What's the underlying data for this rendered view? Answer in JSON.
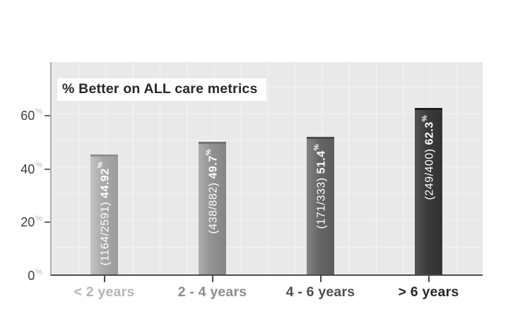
{
  "chart_data": {
    "type": "bar",
    "title": "% Better on ALL care metrics",
    "xlabel": "",
    "ylabel": "",
    "categories": [
      "< 2 years",
      "2 - 4 years",
      "4 - 6 years",
      "> 6 years"
    ],
    "values": [
      44.92,
      49.7,
      51.4,
      62.3
    ],
    "percent_sign": "%",
    "grid": true,
    "legend_position": "none",
    "plot_background": "#e9e9e9",
    "y_axis": {
      "max": 80,
      "unit": "%",
      "ticks": [
        {
          "label": "0",
          "value": 0
        },
        {
          "label": "20",
          "value": 20
        },
        {
          "label": "40",
          "value": 40
        },
        {
          "label": "60",
          "value": 60
        }
      ]
    },
    "bars": [
      {
        "category": "< 2 years",
        "fraction": "(1164/2591) ",
        "value": 44.92,
        "value_label": "44.92",
        "color_light": "#c4c4c4",
        "color_mid": "#a9a9a9",
        "color_dark": "#9b9b9b",
        "cap_color": "#8f8f8f",
        "axis_label_color": "#b5b5b5"
      },
      {
        "category": "2 - 4 years",
        "fraction": "(438/882) ",
        "value": 49.7,
        "value_label": "49.7",
        "color_light": "#aeaeae",
        "color_mid": "#929292",
        "color_dark": "#858585",
        "cap_color": "#747474",
        "axis_label_color": "#8c8c8c"
      },
      {
        "category": "4 - 6 years",
        "fraction": "(171/333) ",
        "value": 51.4,
        "value_label": "51.4",
        "color_light": "#848484",
        "color_mid": "#666666",
        "color_dark": "#5c5c5c",
        "cap_color": "#4c4c4c",
        "axis_label_color": "#4f4f4f"
      },
      {
        "category": "> 6 years",
        "fraction": "(249/400) ",
        "value": 62.3,
        "value_label": "62.3",
        "color_light": "#555555",
        "color_mid": "#3b3b3b",
        "color_dark": "#323232",
        "cap_color": "#1e1e1e",
        "axis_label_color": "#262626"
      }
    ]
  }
}
